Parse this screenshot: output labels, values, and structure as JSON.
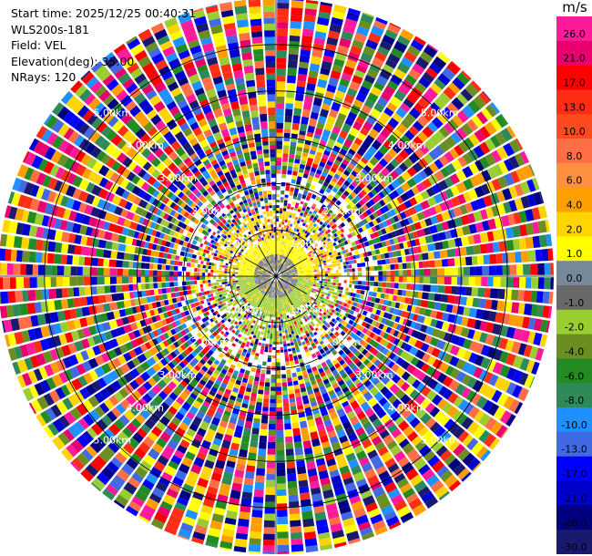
{
  "header": {
    "start_time": "Start time: 2025/12/25 00:40:31",
    "instrument": "WLS200s-181",
    "field": "Field: VEL",
    "elevation": "Elevation(deg): 35.00",
    "nrays": "NRays: 120"
  },
  "colorbar": {
    "unit": "m/s",
    "colors": [
      "#ff1a9c",
      "#e8006e",
      "#ff0000",
      "#ff2d14",
      "#ff4a20",
      "#ff6e45",
      "#ff9040",
      "#ff9e00",
      "#ffd400",
      "#ffff00",
      "#778899",
      "#696969",
      "#9acd32",
      "#6b8e23",
      "#228b22",
      "#2e8b57",
      "#1e90ff",
      "#4169e1",
      "#0000ff",
      "#0000cd",
      "#000080",
      "#191970"
    ],
    "labels": [
      "26.0",
      "21.0",
      "17.0",
      "13.0",
      "10.0",
      "8.0",
      "6.0",
      "4.0",
      "2.0",
      "1.0",
      "0.0",
      "-1.0",
      "-2.0",
      "-4.0",
      "-6.0",
      "-8.0",
      "-10.0",
      "-13.0",
      "-17.0",
      "-21.0",
      "-26.0",
      "-30.0"
    ]
  },
  "chart_data": {
    "type": "heatmap",
    "projection": "polar-ppi",
    "field": "VEL",
    "units": "m/s",
    "n_rays": 120,
    "elevation_deg": 35.0,
    "range_max_km": 6.0,
    "range_rings_km": [
      1,
      2,
      3,
      4,
      5
    ],
    "range_labels": [
      "1.00km",
      "2.00km",
      "3.00km",
      "4.00km",
      "5.00km"
    ],
    "azimuth_lines_deg": [
      0,
      30,
      60,
      90,
      120,
      150,
      180,
      210,
      240,
      270,
      300,
      330
    ],
    "near_field": {
      "extent_km": 1.4,
      "north_half_velocity": 2.0,
      "south_half_velocity": -1.5,
      "core_velocity": 0.0
    }
  }
}
